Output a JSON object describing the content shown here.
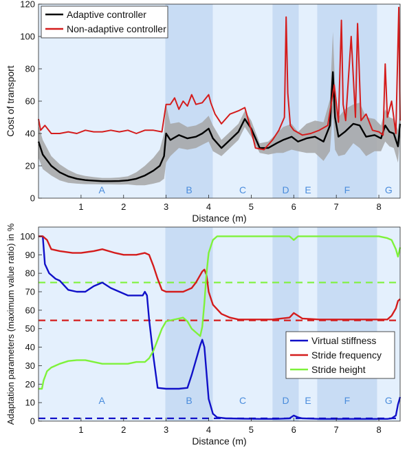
{
  "chart_data": [
    {
      "type": "line",
      "xlabel": "Distance (m)",
      "ylabel": "Cost of transport",
      "xlim": [
        0,
        8.5
      ],
      "ylim": [
        0,
        120
      ],
      "xticks": [
        1,
        2,
        3,
        4,
        5,
        6,
        7,
        8
      ],
      "yticks": [
        0,
        20,
        40,
        60,
        80,
        100,
        120
      ],
      "grid": false,
      "legend_position": "top-left",
      "regions": [
        {
          "label": "A",
          "start": 0,
          "end": 2.98,
          "shade": "light"
        },
        {
          "label": "B",
          "start": 2.98,
          "end": 4.1,
          "shade": "dark"
        },
        {
          "label": "C",
          "start": 4.1,
          "end": 5.5,
          "shade": "light"
        },
        {
          "label": "D",
          "start": 5.5,
          "end": 6.12,
          "shade": "dark"
        },
        {
          "label": "E",
          "start": 6.12,
          "end": 6.55,
          "shade": "light"
        },
        {
          "label": "F",
          "start": 6.55,
          "end": 7.96,
          "shade": "dark"
        },
        {
          "label": "G",
          "start": 7.96,
          "end": 8.5,
          "shade": "light"
        }
      ],
      "series": [
        {
          "name": "Adaptive controller",
          "color": "#000000",
          "x": [
            0,
            0.1,
            0.3,
            0.5,
            0.7,
            0.9,
            1.1,
            1.3,
            1.5,
            1.7,
            1.9,
            2.1,
            2.3,
            2.5,
            2.7,
            2.85,
            2.95,
            3.0,
            3.1,
            3.3,
            3.5,
            3.7,
            3.85,
            4.0,
            4.1,
            4.3,
            4.5,
            4.7,
            4.85,
            5.0,
            5.2,
            5.4,
            5.6,
            5.75,
            5.85,
            5.95,
            6.1,
            6.3,
            6.5,
            6.7,
            6.85,
            6.92,
            6.97,
            7.05,
            7.2,
            7.4,
            7.55,
            7.7,
            7.9,
            8.05,
            8.15,
            8.25,
            8.35,
            8.45,
            8.5
          ],
          "y": [
            35,
            27,
            20,
            16,
            13.5,
            12,
            11.2,
            10.8,
            10.5,
            10.5,
            10.6,
            11,
            12,
            14,
            17,
            20,
            26,
            40,
            36,
            39,
            37,
            38,
            40,
            43,
            37,
            31,
            36,
            41,
            49,
            43,
            31,
            31,
            34,
            36,
            37,
            38,
            35,
            37,
            38,
            35,
            45,
            78,
            50,
            38,
            41,
            46,
            45,
            38,
            39,
            37,
            45,
            41,
            40,
            32,
            46
          ],
          "band_halfwidth": [
            10,
            9,
            6,
            5,
            4,
            3,
            2.5,
            2.2,
            2,
            2,
            2.2,
            2.5,
            4,
            6,
            8,
            10,
            14,
            18,
            10,
            8,
            7,
            7,
            7,
            8,
            8,
            5,
            5,
            5,
            5,
            5,
            3,
            4,
            6,
            8,
            8,
            8,
            6,
            9,
            10,
            12,
            16,
            25,
            20,
            12,
            14,
            12,
            14,
            12,
            10,
            8,
            10,
            9,
            9,
            10,
            8
          ]
        },
        {
          "name": "Non-adaptive controller",
          "color": "#d41c1c",
          "x": [
            0,
            0.05,
            0.15,
            0.3,
            0.5,
            0.7,
            0.9,
            1.1,
            1.3,
            1.5,
            1.7,
            1.9,
            2.1,
            2.3,
            2.5,
            2.7,
            2.9,
            3.0,
            3.1,
            3.2,
            3.3,
            3.4,
            3.5,
            3.6,
            3.7,
            3.85,
            4.0,
            4.05,
            4.15,
            4.3,
            4.5,
            4.7,
            4.85,
            5.0,
            5.1,
            5.3,
            5.5,
            5.65,
            5.78,
            5.82,
            5.86,
            5.92,
            6.0,
            6.2,
            6.4,
            6.6,
            6.8,
            6.95,
            7.05,
            7.12,
            7.16,
            7.22,
            7.35,
            7.45,
            7.5,
            7.58,
            7.7,
            7.85,
            8.0,
            8.1,
            8.15,
            8.2,
            8.3,
            8.4,
            8.47,
            8.5
          ],
          "y": [
            49,
            42,
            45,
            40,
            40,
            41,
            40,
            42,
            41,
            41,
            42,
            41,
            42,
            40,
            42,
            42,
            41,
            58,
            58,
            62,
            55,
            60,
            57,
            64,
            58,
            59,
            64,
            59,
            52,
            46,
            52,
            54,
            56,
            42,
            31,
            30,
            36,
            42,
            50,
            112,
            65,
            45,
            42,
            39,
            40,
            42,
            45,
            70,
            47,
            110,
            58,
            48,
            100,
            50,
            108,
            48,
            52,
            42,
            41,
            39,
            83,
            50,
            60,
            40,
            118,
            48
          ]
        }
      ]
    },
    {
      "type": "line",
      "xlabel": "Distance (m)",
      "ylabel": "Adaptation parameters (maximum value ratio) in %",
      "xlim": [
        0,
        8.5
      ],
      "ylim": [
        0,
        105
      ],
      "xticks": [
        1,
        2,
        3,
        4,
        5,
        6,
        7,
        8
      ],
      "yticks": [
        0,
        10,
        20,
        30,
        40,
        50,
        60,
        70,
        80,
        90,
        100
      ],
      "grid": false,
      "legend_position": "bottom-right",
      "regions": [
        {
          "label": "A",
          "start": 0,
          "end": 2.98,
          "shade": "light"
        },
        {
          "label": "B",
          "start": 2.98,
          "end": 4.1,
          "shade": "dark"
        },
        {
          "label": "C",
          "start": 4.1,
          "end": 5.5,
          "shade": "light"
        },
        {
          "label": "D",
          "start": 5.5,
          "end": 6.12,
          "shade": "dark"
        },
        {
          "label": "E",
          "start": 6.12,
          "end": 6.55,
          "shade": "light"
        },
        {
          "label": "F",
          "start": 6.55,
          "end": 7.96,
          "shade": "dark"
        },
        {
          "label": "G",
          "start": 7.96,
          "end": 8.5,
          "shade": "light"
        }
      ],
      "series": [
        {
          "name": "Virtual stiffness",
          "color": "#1010c8",
          "x": [
            0,
            0.1,
            0.15,
            0.25,
            0.4,
            0.5,
            0.7,
            0.9,
            1.1,
            1.3,
            1.5,
            1.7,
            1.9,
            2.1,
            2.3,
            2.45,
            2.5,
            2.55,
            2.6,
            2.7,
            2.8,
            3.0,
            3.3,
            3.5,
            3.6,
            3.7,
            3.8,
            3.85,
            3.9,
            4.0,
            4.1,
            4.2,
            4.4,
            4.8,
            5.2,
            5.6,
            5.9,
            6.0,
            6.1,
            6.2,
            6.6,
            7.0,
            7.5,
            8.0,
            8.2,
            8.3,
            8.4,
            8.45,
            8.5
          ],
          "y": [
            100,
            100,
            85,
            80,
            77,
            76,
            71,
            70,
            70,
            73,
            75,
            72,
            70,
            68,
            68,
            68,
            70,
            68,
            55,
            35,
            18,
            17.5,
            17.5,
            18,
            25,
            33,
            41,
            44,
            40,
            12,
            4,
            2,
            1.5,
            1.3,
            1.2,
            1.2,
            1.5,
            3,
            2,
            1.5,
            1.2,
            1.2,
            1.2,
            1.2,
            1.2,
            1.5,
            3,
            9,
            13
          ]
        },
        {
          "name": "Stride frequency",
          "color": "#d41c1c",
          "x": [
            0,
            0.1,
            0.2,
            0.3,
            0.5,
            0.8,
            1.0,
            1.3,
            1.5,
            1.8,
            2.0,
            2.3,
            2.5,
            2.6,
            2.7,
            2.8,
            2.9,
            3.0,
            3.2,
            3.4,
            3.5,
            3.6,
            3.7,
            3.8,
            3.85,
            3.9,
            3.95,
            4.0,
            4.1,
            4.3,
            4.5,
            4.7,
            5.0,
            5.5,
            5.9,
            6.0,
            6.1,
            6.2,
            6.6,
            7.0,
            7.5,
            8.0,
            8.2,
            8.3,
            8.4,
            8.45,
            8.5
          ],
          "y": [
            100,
            100,
            98,
            93,
            92,
            91,
            91,
            92,
            93,
            91,
            90,
            90,
            91,
            90,
            84,
            77,
            71,
            70,
            70,
            70,
            71,
            72,
            75,
            79,
            81,
            82,
            79,
            70,
            63,
            58,
            56,
            55,
            55,
            55,
            56,
            58.5,
            57,
            55.5,
            55,
            55,
            55,
            55,
            55,
            57,
            61,
            65,
            66
          ]
        },
        {
          "name": "Stride height",
          "color": "#7ef23a",
          "x": [
            0,
            0.08,
            0.12,
            0.2,
            0.3,
            0.4,
            0.5,
            0.7,
            0.9,
            1.1,
            1.3,
            1.5,
            1.7,
            1.9,
            2.1,
            2.3,
            2.5,
            2.6,
            2.7,
            2.8,
            2.9,
            3.0,
            3.2,
            3.4,
            3.5,
            3.6,
            3.7,
            3.8,
            3.85,
            3.9,
            3.95,
            4.0,
            4.1,
            4.2,
            4.5,
            5.0,
            5.5,
            5.9,
            6.0,
            6.1,
            6.5,
            7.0,
            7.5,
            8.0,
            8.2,
            8.3,
            8.4,
            8.45,
            8.5
          ],
          "y": [
            17.5,
            17.5,
            22,
            27,
            29,
            30,
            31,
            32.5,
            33,
            33,
            32,
            31,
            31,
            31,
            31,
            32,
            32,
            34,
            38,
            44,
            50,
            54,
            55,
            56,
            54,
            50,
            48,
            46,
            51,
            64,
            80,
            91,
            98,
            100,
            100,
            100,
            100,
            100,
            98,
            100,
            100,
            100,
            100,
            100,
            99,
            98,
            93,
            89,
            94
          ]
        }
      ],
      "reference_lines": [
        {
          "series": "Virtual stiffness",
          "y": 1.5,
          "style": "dashed"
        },
        {
          "series": "Stride frequency",
          "y": 54.5,
          "style": "dashed"
        },
        {
          "series": "Stride height",
          "y": 75,
          "style": "dashed"
        }
      ]
    }
  ]
}
